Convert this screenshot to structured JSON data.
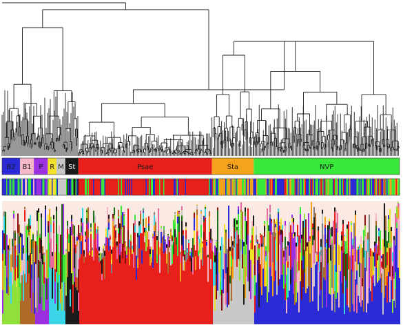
{
  "groups": [
    {
      "label": "B2",
      "color": "#2a2ad6",
      "text_color": "#1a1a1a",
      "share": 0.045
    },
    {
      "label": "B1",
      "color": "#f4b8c8",
      "text_color": "#1a1a1a",
      "share": 0.035
    },
    {
      "label": "P",
      "color": "#9b30e0",
      "text_color": "#1a1a1a",
      "share": 0.035
    },
    {
      "label": "R",
      "color": "#f2e22c",
      "text_color": "#1a1a1a",
      "share": 0.022
    },
    {
      "label": "M",
      "color": "#c8c8c8",
      "text_color": "#1a1a1a",
      "share": 0.022
    },
    {
      "label": "St",
      "color": "#1a1a1a",
      "text_color": "#ffffff",
      "share": 0.033
    },
    {
      "label": "Psae",
      "color": "#e8201c",
      "text_color": "#1a1a1a",
      "share": 0.336
    },
    {
      "label": "Sta",
      "color": "#f5a21c",
      "text_color": "#1a1a1a",
      "share": 0.105
    },
    {
      "label": "NVP",
      "color": "#3ae83a",
      "text_color": "#1a1a1a",
      "share": 0.367
    }
  ],
  "colors": {
    "dendrogram_line": "#1a1a1a",
    "admixture_background": "#fbe9e3",
    "ancestry_palette": [
      "#e8201c",
      "#2a2ad6",
      "#3ae83a",
      "#f5a21c",
      "#f4b8c8",
      "#9b30e0",
      "#f2e22c",
      "#c8c8c8",
      "#1a1a1a",
      "#8a1010",
      "#1a6e1a",
      "#8fe03a",
      "#3ad6e8",
      "#b06a2a",
      "#e86aa0",
      "#808080"
    ]
  }
}
